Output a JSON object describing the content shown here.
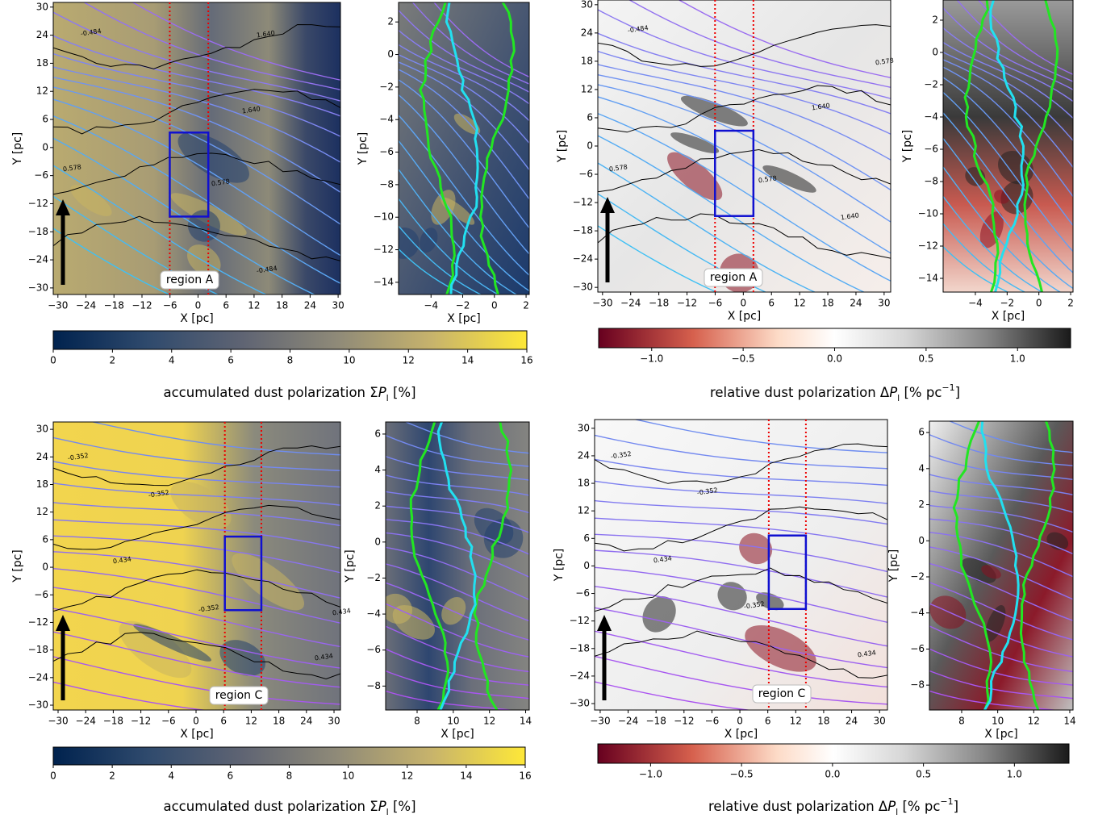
{
  "chart_data": [
    {
      "type": "image",
      "panels": [
        {
          "xlabel": "X [pc]",
          "ylabel": "Y [pc]",
          "xlim": [
            -31,
            30.5
          ],
          "ylim": [
            -31.4,
            31
          ],
          "xticks": [
            {
              "value": -30,
              "label": "−30"
            },
            {
              "value": -24,
              "label": "−24"
            },
            {
              "value": -18,
              "label": "−18"
            },
            {
              "value": -12,
              "label": "−12"
            },
            {
              "value": -6,
              "label": "−6"
            },
            0,
            6,
            12,
            18,
            24,
            30
          ],
          "yticks": [
            {
              "value": -30,
              "label": "−30"
            },
            {
              "value": -24,
              "label": "−24"
            },
            {
              "value": -18,
              "label": "−18"
            },
            {
              "value": -12,
              "label": "−12"
            },
            {
              "value": -6,
              "label": "−6"
            },
            0,
            6,
            12,
            18,
            24,
            30
          ],
          "contour_labels": [
            "-0.484",
            "0.578",
            "1.640",
            "1.640",
            "0.578",
            "-0.484"
          ],
          "region_label": "region A"
        },
        {
          "xlabel": "X [pc]",
          "ylabel": "Y [pc]",
          "xlim": [
            -6.05,
            2.2
          ],
          "ylim": [
            -14.75,
            3.2
          ],
          "xticks": [
            {
              "value": -4,
              "label": "−4"
            },
            {
              "value": -2,
              "label": "−2"
            },
            0,
            2
          ],
          "yticks": [
            {
              "value": -14,
              "label": "−14"
            },
            {
              "value": -12,
              "label": "−12"
            },
            {
              "value": -10,
              "label": "−10"
            },
            {
              "value": -8,
              "label": "−8"
            },
            {
              "value": -6,
              "label": "−6"
            },
            {
              "value": -4,
              "label": "−4"
            },
            {
              "value": -2,
              "label": "−2"
            },
            0,
            2
          ]
        }
      ],
      "colorbar": {
        "lim": [
          0,
          16
        ],
        "ticks": [
          0,
          2,
          4,
          6,
          8,
          10,
          12,
          14,
          16
        ],
        "label": [
          "accumulated dust polarization Σ",
          "P",
          "l",
          " [%]"
        ]
      }
    },
    {
      "type": "image",
      "panels": [
        {
          "xlabel": "X [pc]",
          "ylabel": "Y [pc]",
          "xlim": [
            -31,
            31.4
          ],
          "ylim": [
            -31,
            31
          ],
          "xticks": [
            {
              "value": -30,
              "label": "−30"
            },
            {
              "value": -24,
              "label": "−24"
            },
            {
              "value": -18,
              "label": "−18"
            },
            {
              "value": -12,
              "label": "−12"
            },
            {
              "value": -6,
              "label": "−6"
            },
            0,
            6,
            12,
            18,
            24,
            30
          ],
          "yticks": [
            {
              "value": -30,
              "label": "−30"
            },
            {
              "value": -24,
              "label": "−24"
            },
            {
              "value": -18,
              "label": "−18"
            },
            {
              "value": -12,
              "label": "−12"
            },
            {
              "value": -6,
              "label": "−6"
            },
            0,
            6,
            12,
            18,
            24,
            30
          ],
          "contour_labels": [
            "-0.484",
            "0.578",
            "1.640",
            "1.640",
            "0.578",
            "0.578"
          ],
          "region_label": "region A"
        },
        {
          "xlabel": "X [pc]",
          "ylabel": "Y [pc]",
          "xlim": [
            -6.03,
            2.15
          ],
          "ylim": [
            -14.85,
            3.25
          ],
          "xticks": [
            {
              "value": -4,
              "label": "−4"
            },
            {
              "value": -2,
              "label": "−2"
            },
            0,
            2
          ],
          "yticks": [
            {
              "value": -14,
              "label": "−14"
            },
            {
              "value": -12,
              "label": "−12"
            },
            {
              "value": -10,
              "label": "−10"
            },
            {
              "value": -8,
              "label": "−8"
            },
            {
              "value": -6,
              "label": "−6"
            },
            {
              "value": -4,
              "label": "−4"
            },
            {
              "value": -2,
              "label": "−2"
            },
            0,
            2
          ]
        }
      ],
      "colorbar": {
        "lim": [
          -1.29,
          1.29
        ],
        "ticks": [
          {
            "value": -1,
            "label": "−1.0"
          },
          {
            "value": -0.5,
            "label": "−0.5"
          },
          {
            "value": 0,
            "label": "0.0"
          },
          0.5,
          {
            "value": 1,
            "label": "1.0"
          }
        ],
        "label": [
          "relative dust polarization Δ",
          "P",
          "l",
          " [% pc",
          "−1",
          "]"
        ]
      }
    },
    {
      "type": "image",
      "panels": [
        {
          "xlabel": "X [pc]",
          "ylabel": "Y [pc]",
          "xlim": [
            -31.05,
            31.4
          ],
          "ylim": [
            -31.05,
            31.6
          ],
          "xticks": [
            {
              "value": -30,
              "label": "−30"
            },
            {
              "value": -24,
              "label": "−24"
            },
            {
              "value": -18,
              "label": "−18"
            },
            {
              "value": -12,
              "label": "−12"
            },
            {
              "value": -6,
              "label": "−6"
            },
            0,
            6,
            12,
            18,
            24,
            30
          ],
          "yticks": [
            {
              "value": -30,
              "label": "−30"
            },
            {
              "value": -24,
              "label": "−24"
            },
            {
              "value": -18,
              "label": "−18"
            },
            {
              "value": -12,
              "label": "−12"
            },
            {
              "value": -6,
              "label": "−6"
            },
            0,
            6,
            12,
            18,
            24,
            30
          ],
          "contour_labels": [
            "-0.352",
            "-0.352",
            "0.434",
            "-0.352",
            "0.434",
            "0.434"
          ],
          "region_label": "region C"
        },
        {
          "xlabel": "X [pc]",
          "ylabel": "Y [pc]",
          "xlim": [
            6.26,
            14.2
          ],
          "ylim": [
            -9.33,
            6.67
          ],
          "xticks": [
            8,
            10,
            12,
            14
          ],
          "yticks": [
            {
              "value": -8,
              "label": "−8"
            },
            {
              "value": -6,
              "label": "−6"
            },
            {
              "value": -4,
              "label": "−4"
            },
            {
              "value": -2,
              "label": "−2"
            },
            0,
            2,
            4,
            6
          ]
        }
      ],
      "colorbar": {
        "lim": [
          0,
          16
        ],
        "ticks": [
          0,
          2,
          4,
          6,
          8,
          10,
          12,
          14,
          16
        ],
        "label": [
          "accumulated dust polarization Σ",
          "P",
          "l",
          " [%]"
        ]
      }
    },
    {
      "type": "image",
      "panels": [
        {
          "xlabel": "X [pc]",
          "ylabel": "Y [pc]",
          "xlim": [
            -31.2,
            31.7
          ],
          "ylim": [
            -31.4,
            31.9
          ],
          "xticks": [
            {
              "value": -30,
              "label": "−30"
            },
            {
              "value": -24,
              "label": "−24"
            },
            {
              "value": -18,
              "label": "−18"
            },
            {
              "value": -12,
              "label": "−12"
            },
            {
              "value": -6,
              "label": "−6"
            },
            0,
            6,
            12,
            18,
            24,
            30
          ],
          "yticks": [
            {
              "value": -30,
              "label": "−30"
            },
            {
              "value": -24,
              "label": "−24"
            },
            {
              "value": -18,
              "label": "−18"
            },
            {
              "value": -12,
              "label": "−12"
            },
            {
              "value": -6,
              "label": "−6"
            },
            0,
            6,
            12,
            18,
            24,
            30
          ],
          "contour_labels": [
            "-0.352",
            "-0.352",
            "0.434",
            "-0.352",
            "0.434"
          ],
          "region_label": "region C"
        },
        {
          "xlabel": "X [pc]",
          "ylabel": "Y [pc]",
          "xlim": [
            6.21,
            14.18
          ],
          "ylim": [
            -9.38,
            6.63
          ],
          "xticks": [
            8,
            10,
            12,
            14
          ],
          "yticks": [
            {
              "value": -8,
              "label": "−8"
            },
            {
              "value": -6,
              "label": "−6"
            },
            {
              "value": -4,
              "label": "−4"
            },
            {
              "value": -2,
              "label": "−2"
            },
            0,
            2,
            4,
            6
          ]
        }
      ],
      "colorbar": {
        "lim": [
          -1.29,
          1.3
        ],
        "ticks": [
          {
            "value": -1,
            "label": "−1.0"
          },
          {
            "value": -0.5,
            "label": "−0.5"
          },
          {
            "value": 0,
            "label": "0.0"
          },
          0.5,
          {
            "value": 1,
            "label": "1.0"
          }
        ],
        "label": [
          "relative dust polarization Δ",
          "P",
          "l",
          " [% pc",
          "−1",
          "]"
        ]
      }
    }
  ]
}
